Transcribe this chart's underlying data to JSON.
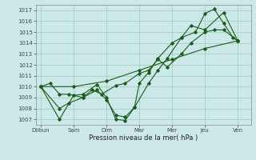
{
  "xlabel": "Pression niveau de la mer( hPa )",
  "ylim": [
    1006.5,
    1017.5
  ],
  "yticks": [
    1007,
    1008,
    1009,
    1010,
    1011,
    1012,
    1013,
    1014,
    1015,
    1016,
    1017
  ],
  "x_labels": [
    "Diibun",
    "Sam",
    "Dim",
    "Mar",
    "Mer",
    "Jeu",
    "Ven"
  ],
  "x_positions": [
    0,
    2,
    4,
    6,
    8,
    10,
    12
  ],
  "xlim": [
    -0.3,
    12.8
  ],
  "background_color": "#cce8e8",
  "grid_color": "#99ccbb",
  "line_color": "#1a5c1a",
  "lines": [
    {
      "x": [
        0,
        0.57,
        1.14,
        1.71,
        2.57,
        3.14,
        3.71,
        4.57,
        5.14,
        6.0,
        6.57,
        7.14,
        7.71,
        8.57,
        9.14,
        10.0,
        10.57,
        11.14,
        12.0
      ],
      "y": [
        1010.0,
        1010.3,
        1009.3,
        1009.3,
        1009.0,
        1009.7,
        1009.3,
        1010.1,
        1010.3,
        1011.2,
        1011.5,
        1012.5,
        1011.8,
        1013.0,
        1014.0,
        1015.0,
        1015.2,
        1015.2,
        1014.2
      ]
    },
    {
      "x": [
        0,
        1.14,
        1.71,
        2.57,
        3.43,
        4.0,
        4.57,
        5.14,
        5.71,
        6.57,
        7.14,
        7.71,
        8.57,
        9.14,
        10.0,
        11.14,
        12.0
      ],
      "y": [
        1010.0,
        1008.0,
        1008.5,
        1009.0,
        1009.7,
        1008.8,
        1007.4,
        1007.2,
        1008.1,
        1010.3,
        1011.5,
        1012.6,
        1014.5,
        1015.6,
        1015.2,
        1016.8,
        1014.2
      ]
    },
    {
      "x": [
        0,
        1.14,
        2.0,
        2.57,
        3.43,
        4.0,
        4.57,
        5.14,
        5.71,
        6.0,
        6.57,
        7.14,
        8.0,
        8.57,
        9.43,
        10.0,
        10.57,
        11.14,
        11.71,
        12.0
      ],
      "y": [
        1010.0,
        1007.0,
        1009.2,
        1009.3,
        1010.2,
        1009.0,
        1007.0,
        1006.9,
        1008.1,
        1010.3,
        1011.3,
        1012.6,
        1014.0,
        1014.5,
        1015.0,
        1016.7,
        1017.1,
        1015.8,
        1014.5,
        1014.2
      ]
    },
    {
      "x": [
        0,
        2.0,
        4.0,
        6.0,
        8.0,
        10.0,
        12.0
      ],
      "y": [
        1010.0,
        1010.0,
        1010.5,
        1011.5,
        1012.5,
        1013.5,
        1014.2
      ]
    }
  ]
}
